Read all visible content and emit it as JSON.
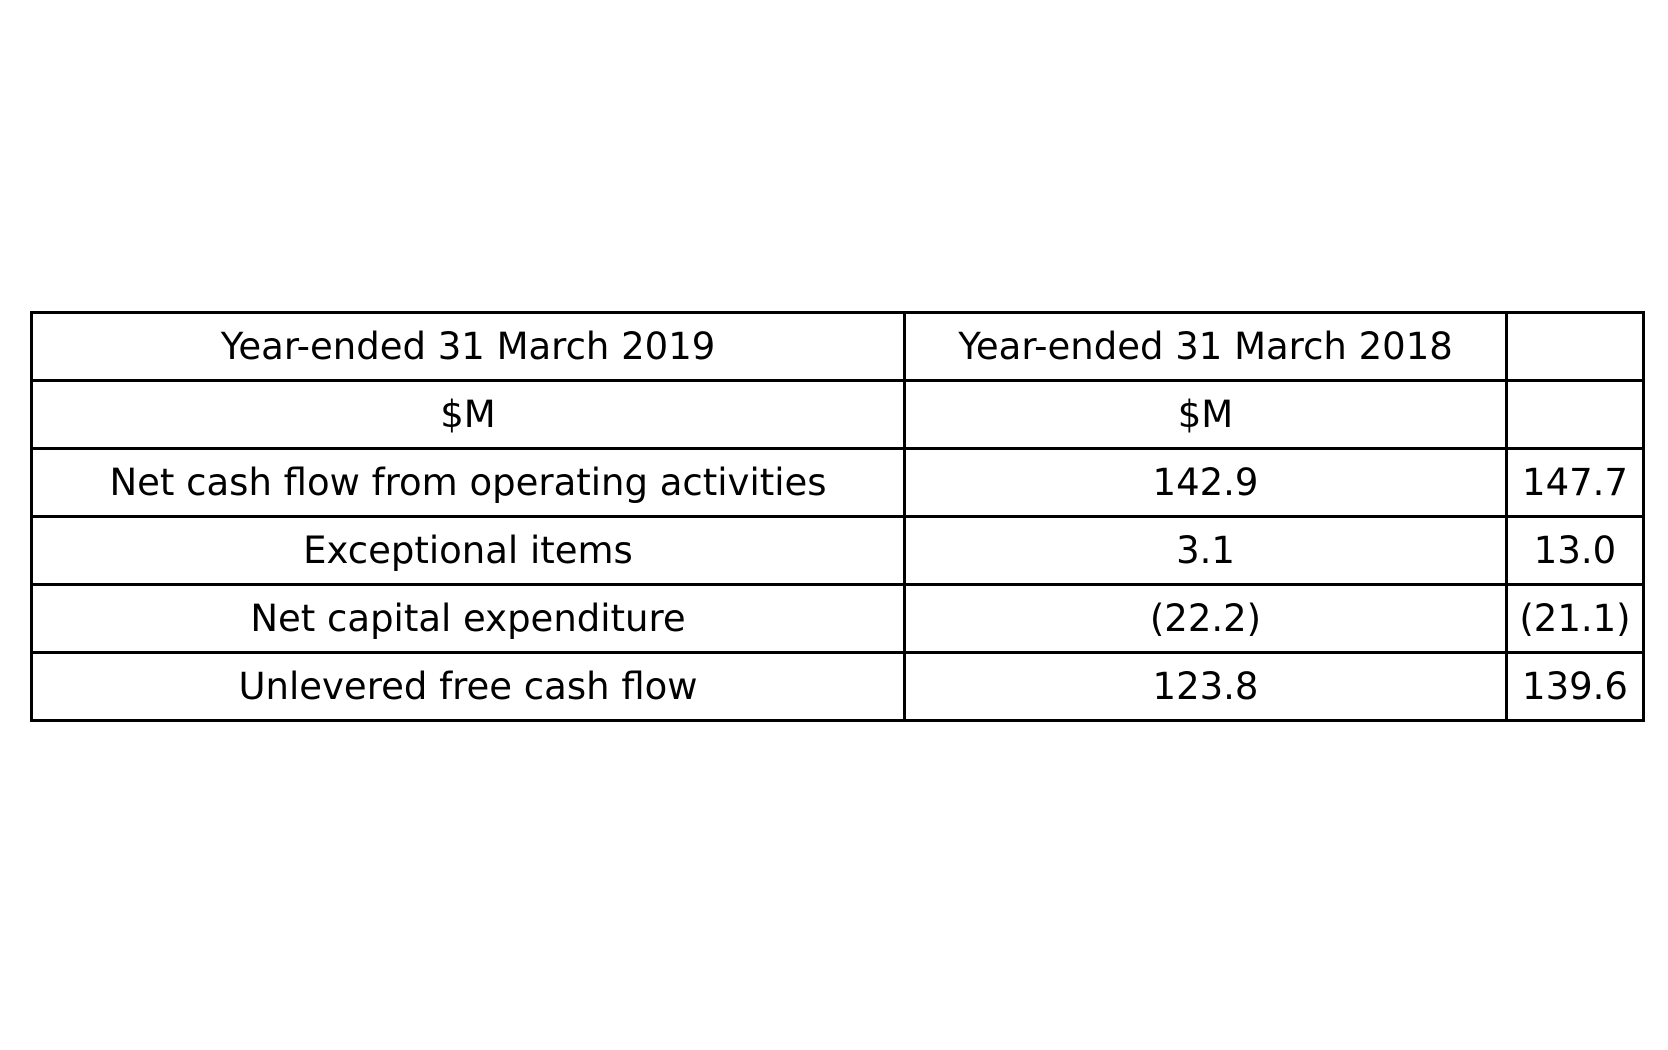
{
  "chart_data": {
    "type": "table",
    "rows": [
      [
        "Year-ended 31 March 2019",
        "Year-ended 31 March 2018",
        ""
      ],
      [
        "$M",
        "$M",
        ""
      ],
      [
        "Net cash flow from operating activities",
        "142.9",
        "147.7"
      ],
      [
        "Exceptional items",
        "3.1",
        "13.0"
      ],
      [
        "Net capital expenditure",
        "(22.2)",
        "(21.1)"
      ],
      [
        "Unlevered free cash flow",
        "123.8",
        "139.6"
      ]
    ]
  }
}
